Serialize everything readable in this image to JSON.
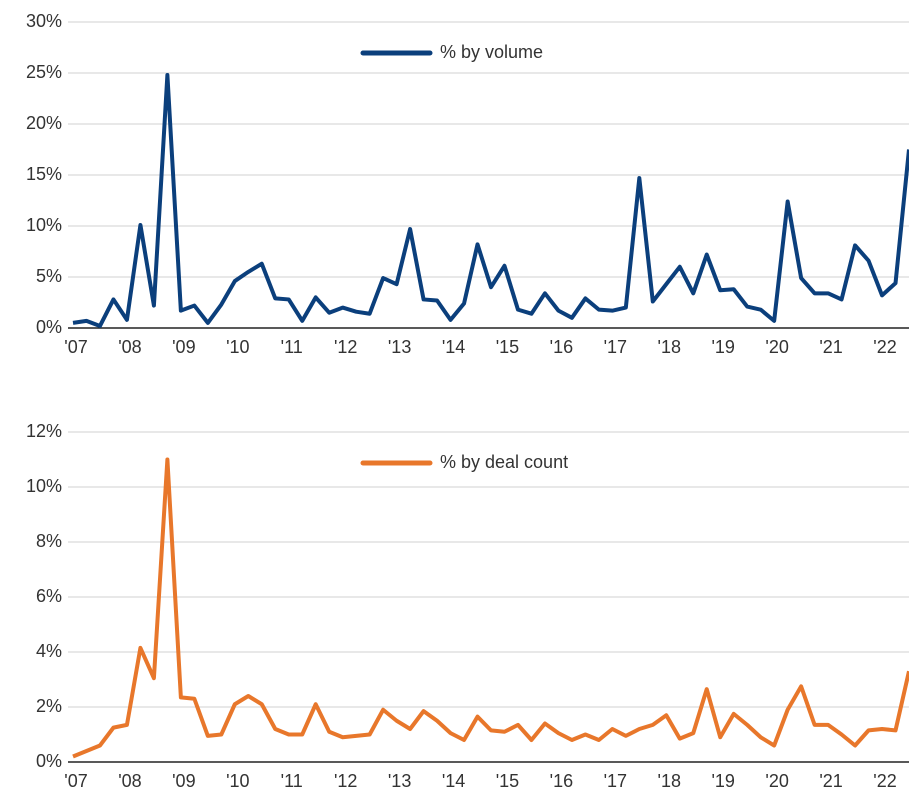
{
  "chart_data": [
    {
      "type": "line",
      "categories": [
        "'07",
        null,
        null,
        null,
        "'08",
        null,
        null,
        null,
        "'09",
        null,
        null,
        null,
        "'10",
        null,
        null,
        null,
        "'11",
        null,
        null,
        null,
        "'12",
        null,
        null,
        null,
        "'13",
        null,
        null,
        null,
        "'14",
        null,
        null,
        null,
        "'15",
        null,
        null,
        null,
        "'16",
        null,
        null,
        null,
        "'17",
        null,
        null,
        null,
        "'18",
        null,
        null,
        null,
        "'19",
        null,
        null,
        null,
        "'20",
        null,
        null,
        null,
        "'21",
        null,
        null,
        null,
        "'22",
        null,
        null
      ],
      "series": [
        {
          "name": "% by volume",
          "color": "#0b3f7c",
          "values": [
            0.5,
            0.7,
            0.2,
            2.8,
            0.8,
            10.1,
            2.2,
            24.8,
            1.7,
            2.2,
            0.5,
            2.3,
            4.6,
            5.5,
            6.3,
            2.9,
            2.8,
            0.7,
            3.0,
            1.5,
            2.0,
            1.6,
            1.4,
            4.9,
            4.3,
            9.7,
            2.8,
            2.7,
            0.8,
            2.4,
            8.2,
            4.0,
            6.1,
            1.8,
            1.4,
            3.4,
            1.7,
            1.0,
            2.9,
            1.8,
            1.7,
            2.0,
            14.7,
            2.6,
            4.3,
            6.0,
            3.4,
            7.2,
            3.7,
            3.8,
            2.1,
            1.8,
            0.7,
            12.4,
            4.9,
            3.4,
            3.4,
            2.8,
            8.1,
            6.6,
            3.2,
            4.4,
            17.5
          ]
        }
      ],
      "ylim": [
        0,
        30
      ],
      "yticks": [
        {
          "value": 0,
          "label": "0%"
        },
        {
          "value": 5,
          "label": "5%"
        },
        {
          "value": 10,
          "label": "10%"
        },
        {
          "value": 15,
          "label": "15%"
        },
        {
          "value": 20,
          "label": "20%"
        },
        {
          "value": 25,
          "label": "25%"
        },
        {
          "value": 30,
          "label": "30%"
        }
      ],
      "grid": true,
      "legend": "top"
    },
    {
      "type": "line",
      "categories": [
        "'07",
        null,
        null,
        null,
        "'08",
        null,
        null,
        null,
        "'09",
        null,
        null,
        null,
        "'10",
        null,
        null,
        null,
        "'11",
        null,
        null,
        null,
        "'12",
        null,
        null,
        null,
        "'13",
        null,
        null,
        null,
        "'14",
        null,
        null,
        null,
        "'15",
        null,
        null,
        null,
        "'16",
        null,
        null,
        null,
        "'17",
        null,
        null,
        null,
        "'18",
        null,
        null,
        null,
        "'19",
        null,
        null,
        null,
        "'20",
        null,
        null,
        null,
        "'21",
        null,
        null,
        null,
        "'22",
        null,
        null
      ],
      "series": [
        {
          "name": "% by deal count",
          "color": "#e8772b",
          "values": [
            0.2,
            0.4,
            0.6,
            1.25,
            1.35,
            4.15,
            3.05,
            11.0,
            2.35,
            2.3,
            0.95,
            1.0,
            2.1,
            2.4,
            2.1,
            1.2,
            1.0,
            1.0,
            2.1,
            1.1,
            0.9,
            0.95,
            1.0,
            1.9,
            1.5,
            1.2,
            1.85,
            1.5,
            1.05,
            0.8,
            1.65,
            1.15,
            1.1,
            1.35,
            0.8,
            1.4,
            1.05,
            0.8,
            1.0,
            0.8,
            1.2,
            0.95,
            1.2,
            1.35,
            1.7,
            0.85,
            1.05,
            2.65,
            0.9,
            1.75,
            1.35,
            0.9,
            0.6,
            1.9,
            2.75,
            1.35,
            1.35,
            1.0,
            0.6,
            1.15,
            1.2,
            1.15,
            3.3
          ]
        }
      ],
      "ylim": [
        0,
        12
      ],
      "yticks": [
        {
          "value": 0,
          "label": "0%"
        },
        {
          "value": 2,
          "label": "2%"
        },
        {
          "value": 4,
          "label": "4%"
        },
        {
          "value": 6,
          "label": "6%"
        },
        {
          "value": 8,
          "label": "8%"
        },
        {
          "value": 10,
          "label": "10%"
        },
        {
          "value": 12,
          "label": "12%"
        }
      ],
      "grid": true,
      "legend": "top"
    }
  ]
}
